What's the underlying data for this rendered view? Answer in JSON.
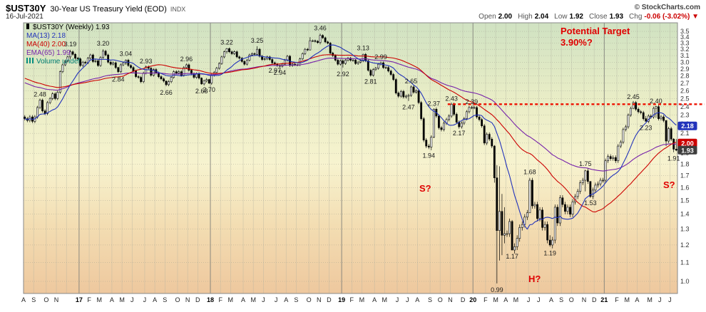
{
  "header": {
    "symbol": "$UST30Y",
    "title": "30-Year US Treasury Yield (EOD)",
    "exchange": "INDX",
    "credit": "© StockCharts.com",
    "date": "16-Jul-2021",
    "quote": {
      "open_label": "Open",
      "open": "2.00",
      "high_label": "High",
      "high": "2.04",
      "low_label": "Low",
      "low": "1.92",
      "close_label": "Close",
      "close": "1.93",
      "chg_label": "Chg",
      "chg": "-0.06 (-3.02%)",
      "chg_arrow": "▼"
    }
  },
  "legend": {
    "main": "$UST30Y (Weekly) 1.93",
    "ma13": "MA(13) 2.18",
    "ma40": "MA(40) 2.00",
    "ema65": "EMA(65) 1.99",
    "volume": "Volume undef"
  },
  "annotations": {
    "target_line1": "Potential Target",
    "target_line2": "3.90%?",
    "s_left": "S?",
    "head": "H?",
    "s_right": "S?"
  },
  "colors": {
    "ma13": "#2233bb",
    "ma40": "#cc0000",
    "ema65": "#7722aa",
    "volume": "#008073",
    "candle": "#000000",
    "annotation": "#e00000",
    "resistance": "#ee1100",
    "close_badge": "#3d3d3d",
    "plot_bg": [
      "#d0e2c2",
      "#e9edc6",
      "#f7f3cf",
      "#f3ddb2",
      "#eec89e"
    ]
  },
  "badges": [
    {
      "label": "2.18",
      "value": 2.18,
      "color_ref": "ma13"
    },
    {
      "label": "2.00",
      "value": 2.0,
      "color_ref": "ma40"
    },
    {
      "label": "1.93",
      "value": 1.93,
      "color_ref": "close_badge"
    }
  ],
  "chart_data": {
    "type": "candlestick",
    "title": "$UST30Y 30-Year US Treasury Yield (EOD), weekly",
    "y_axis": {
      "min": 1.0,
      "max": 3.5,
      "step": 0.1,
      "scale": "log"
    },
    "x_months": [
      [
        "A",
        4
      ],
      [
        "S",
        5
      ],
      [
        "O",
        4
      ],
      [
        "N",
        4
      ],
      [
        "",
        5
      ],
      [
        "17",
        4
      ],
      [
        "F",
        4
      ],
      [
        "M",
        5
      ],
      [
        "A",
        4
      ],
      [
        "M",
        4
      ],
      [
        "J",
        5
      ],
      [
        "J",
        4
      ],
      [
        "A",
        4
      ],
      [
        "S",
        5
      ],
      [
        "O",
        4
      ],
      [
        "N",
        4
      ],
      [
        "D",
        5
      ],
      [
        "18",
        4
      ],
      [
        "F",
        4
      ],
      [
        "M",
        5
      ],
      [
        "A",
        4
      ],
      [
        "M",
        4
      ],
      [
        "J",
        5
      ],
      [
        "J",
        4
      ],
      [
        "A",
        4
      ],
      [
        "S",
        5
      ],
      [
        "O",
        4
      ],
      [
        "N",
        4
      ],
      [
        "D",
        5
      ],
      [
        "19",
        4
      ],
      [
        "F",
        4
      ],
      [
        "M",
        5
      ],
      [
        "A",
        4
      ],
      [
        "M",
        5
      ],
      [
        "J",
        4
      ],
      [
        "J",
        4
      ],
      [
        "A",
        5
      ],
      [
        "S",
        4
      ],
      [
        "O",
        4
      ],
      [
        "N",
        5
      ],
      [
        "D",
        4
      ],
      [
        "20",
        5
      ],
      [
        "F",
        4
      ],
      [
        "M",
        4
      ],
      [
        "A",
        4
      ],
      [
        "M",
        5
      ],
      [
        "J",
        4
      ],
      [
        "J",
        5
      ],
      [
        "A",
        4
      ],
      [
        "S",
        4
      ],
      [
        "O",
        5
      ],
      [
        "N",
        4
      ],
      [
        "D",
        4
      ],
      [
        "21",
        5
      ],
      [
        "F",
        4
      ],
      [
        "M",
        4
      ],
      [
        "A",
        5
      ],
      [
        "M",
        4
      ],
      [
        "J",
        4
      ],
      [
        "J",
        3
      ]
    ],
    "closes": [
      2.26,
      2.24,
      2.28,
      2.23,
      2.28,
      2.39,
      2.48,
      2.35,
      2.32,
      2.45,
      2.5,
      2.56,
      2.5,
      2.58,
      2.86,
      2.96,
      3.02,
      3.08,
      3.16,
      3.12,
      3.06,
      3.05,
      2.95,
      3.0,
      2.99,
      3.06,
      3.11,
      3.01,
      3.02,
      2.95,
      3.07,
      3.17,
      3.11,
      3.0,
      2.97,
      2.99,
      2.92,
      2.86,
      2.96,
      2.99,
      3.03,
      2.95,
      2.92,
      2.87,
      2.79,
      2.78,
      2.72,
      2.84,
      2.93,
      2.91,
      2.81,
      2.89,
      2.84,
      2.79,
      2.76,
      2.73,
      2.68,
      2.72,
      2.78,
      2.86,
      2.84,
      2.86,
      2.81,
      2.92,
      2.96,
      2.88,
      2.83,
      2.78,
      2.83,
      2.77,
      2.69,
      2.73,
      2.75,
      2.7,
      2.81,
      2.85,
      2.91,
      2.98,
      3.08,
      3.16,
      3.21,
      3.16,
      3.13,
      3.16,
      3.08,
      3.06,
      3.01,
      2.97,
      3.03,
      3.11,
      3.13,
      3.12,
      3.2,
      3.09,
      3.04,
      3.05,
      3.08,
      3.04,
      2.99,
      2.97,
      2.95,
      2.94,
      2.97,
      3.03,
      3.09,
      2.95,
      2.97,
      2.96,
      2.96,
      3.05,
      3.13,
      3.2,
      3.19,
      3.34,
      3.34,
      3.33,
      3.31,
      3.43,
      3.39,
      3.32,
      3.3,
      3.14,
      3.1,
      3.03,
      2.97,
      3.02,
      2.98,
      3.03,
      3.06,
      3.03,
      3.03,
      2.98,
      3.0,
      3.02,
      3.12,
      3.02,
      2.88,
      2.81,
      2.89,
      2.91,
      2.97,
      2.99,
      2.92,
      2.92,
      2.87,
      2.82,
      2.75,
      2.57,
      2.53,
      2.59,
      2.52,
      2.53,
      2.54,
      2.65,
      2.58,
      2.6,
      2.45,
      2.26,
      2.03,
      1.97,
      1.96,
      2.06,
      2.37,
      2.29,
      2.16,
      2.14,
      2.21,
      2.25,
      2.29,
      2.43,
      2.31,
      2.22,
      2.17,
      2.21,
      2.26,
      2.34,
      2.39,
      2.39,
      2.39,
      2.28,
      2.25,
      2.18,
      2.0,
      2.09,
      2.04,
      1.97,
      1.68,
      1.29,
      1.42,
      1.26,
      1.27,
      1.27,
      1.35,
      1.17,
      1.19,
      1.24,
      1.31,
      1.33,
      1.38,
      1.41,
      1.66,
      1.46,
      1.47,
      1.37,
      1.43,
      1.31,
      1.33,
      1.23,
      1.2,
      1.23,
      1.45,
      1.34,
      1.52,
      1.47,
      1.42,
      1.45,
      1.4,
      1.49,
      1.53,
      1.57,
      1.64,
      1.66,
      1.74,
      1.65,
      1.53,
      1.58,
      1.62,
      1.63,
      1.66,
      1.66,
      1.83,
      1.87,
      1.85,
      1.86,
      1.83,
      1.97,
      2.01,
      2.14,
      2.17,
      2.3,
      2.38,
      2.45,
      2.37,
      2.34,
      2.33,
      2.26,
      2.23,
      2.29,
      2.28,
      2.38,
      2.4,
      2.26,
      2.28,
      2.24,
      2.02,
      2.15,
      2.04,
      1.94,
      1.93
    ],
    "hl": {
      "18": [
        3.19,
        3.04
      ],
      "31": [
        3.2,
        3.05
      ],
      "37": [
        2.93,
        2.84
      ],
      "40": [
        3.04,
        2.96
      ],
      "56": [
        2.73,
        2.66
      ],
      "70": [
        2.78,
        2.68
      ],
      "73": [
        2.76,
        2.69
      ],
      "80": [
        3.22,
        3.13
      ],
      "92": [
        3.25,
        3.1
      ],
      "113": [
        3.4,
        3.18
      ],
      "117": [
        3.46,
        3.28
      ],
      "126": [
        3.04,
        2.92
      ],
      "134": [
        3.13,
        3.0
      ],
      "147": [
        2.77,
        2.55
      ],
      "152": [
        2.56,
        2.47
      ],
      "156": [
        2.62,
        2.43
      ],
      "160": [
        1.99,
        1.94
      ],
      "161": [
        2.08,
        1.93
      ],
      "162": [
        2.38,
        2.05
      ],
      "186": [
        1.98,
        1.64
      ],
      "187": [
        1.79,
        0.99
      ],
      "188": [
        1.78,
        1.11
      ],
      "189": [
        1.55,
        1.14
      ],
      "190": [
        1.45,
        1.21
      ],
      "193": [
        1.36,
        1.17
      ],
      "200": [
        1.68,
        1.41
      ],
      "208": [
        1.26,
        1.19
      ],
      "222": [
        1.75,
        1.57
      ],
      "224": [
        1.63,
        1.52
      ],
      "241": [
        2.47,
        2.37
      ],
      "246": [
        2.29,
        2.23
      ],
      "250": [
        2.41,
        2.27
      ],
      "254": [
        2.24,
        1.97
      ],
      "257": [
        2.05,
        1.91
      ],
      "258": [
        2.04,
        1.92
      ]
    },
    "price_labels": [
      {
        "i": 6,
        "v": 2.48,
        "t": "2.48",
        "p": "a"
      },
      {
        "i": 18,
        "v": 3.19,
        "t": "3.19",
        "p": "a"
      },
      {
        "i": 31,
        "v": 3.2,
        "t": "3.20",
        "p": "a"
      },
      {
        "i": 37,
        "v": 2.84,
        "t": "2.84",
        "p": "b"
      },
      {
        "i": 40,
        "v": 3.04,
        "t": "3.04",
        "p": "a"
      },
      {
        "i": 48,
        "v": 2.93,
        "t": "2.93",
        "p": "a"
      },
      {
        "i": 56,
        "v": 2.66,
        "t": "2.66",
        "p": "b"
      },
      {
        "i": 64,
        "v": 2.96,
        "t": "2.96",
        "p": "a"
      },
      {
        "i": 70,
        "v": 2.68,
        "t": "2.68",
        "p": "b"
      },
      {
        "i": 73,
        "v": 2.7,
        "t": "2.70",
        "p": "b"
      },
      {
        "i": 80,
        "v": 3.22,
        "t": "3.22",
        "p": "a"
      },
      {
        "i": 92,
        "v": 3.25,
        "t": "3.25",
        "p": "a"
      },
      {
        "i": 99,
        "v": 2.97,
        "t": "2.97",
        "p": "b"
      },
      {
        "i": 101,
        "v": 2.94,
        "t": "2.94",
        "p": "b"
      },
      {
        "i": 117,
        "v": 3.46,
        "t": "3.46",
        "p": "a"
      },
      {
        "i": 126,
        "v": 2.92,
        "t": "2.92",
        "p": "b"
      },
      {
        "i": 134,
        "v": 3.13,
        "t": "3.13",
        "p": "a"
      },
      {
        "i": 137,
        "v": 2.81,
        "t": "2.81",
        "p": "b"
      },
      {
        "i": 141,
        "v": 2.99,
        "t": "2.99",
        "p": "a"
      },
      {
        "i": 152,
        "v": 2.47,
        "t": "2.47",
        "p": "b"
      },
      {
        "i": 153,
        "v": 2.65,
        "t": "2.65",
        "p": "a"
      },
      {
        "i": 160,
        "v": 1.94,
        "t": "1.94",
        "p": "b"
      },
      {
        "i": 162,
        "v": 2.37,
        "t": "2.37",
        "p": "a"
      },
      {
        "i": 169,
        "v": 2.43,
        "t": "2.43",
        "p": "a"
      },
      {
        "i": 172,
        "v": 2.17,
        "t": "2.17",
        "p": "b"
      },
      {
        "i": 177,
        "v": 2.39,
        "t": "2.39",
        "p": "a"
      },
      {
        "i": 187,
        "v": 0.99,
        "t": "0.99",
        "p": "b"
      },
      {
        "i": 193,
        "v": 1.17,
        "t": "1.17",
        "p": "b"
      },
      {
        "i": 200,
        "v": 1.68,
        "t": "1.68",
        "p": "a"
      },
      {
        "i": 208,
        "v": 1.19,
        "t": "1.19",
        "p": "b"
      },
      {
        "i": 222,
        "v": 1.75,
        "t": "1.75",
        "p": "a"
      },
      {
        "i": 224,
        "v": 1.53,
        "t": "1.53",
        "p": "b"
      },
      {
        "i": 241,
        "v": 2.45,
        "t": "2.45",
        "p": "a"
      },
      {
        "i": 246,
        "v": 2.23,
        "t": "2.23",
        "p": "b"
      },
      {
        "i": 250,
        "v": 2.4,
        "t": "2.40",
        "p": "a"
      },
      {
        "i": 257,
        "v": 1.91,
        "t": "1.91",
        "p": "b"
      }
    ],
    "resistance": {
      "level": 2.43,
      "start_index": 168
    },
    "overlays": [
      {
        "name": "MA(13)",
        "type": "sma",
        "window": 13,
        "last": "2.18"
      },
      {
        "name": "MA(40)",
        "type": "sma",
        "window": 40,
        "last": "2.00"
      },
      {
        "name": "EMA(65)",
        "type": "ema",
        "window": 65,
        "last": "1.99"
      }
    ]
  }
}
